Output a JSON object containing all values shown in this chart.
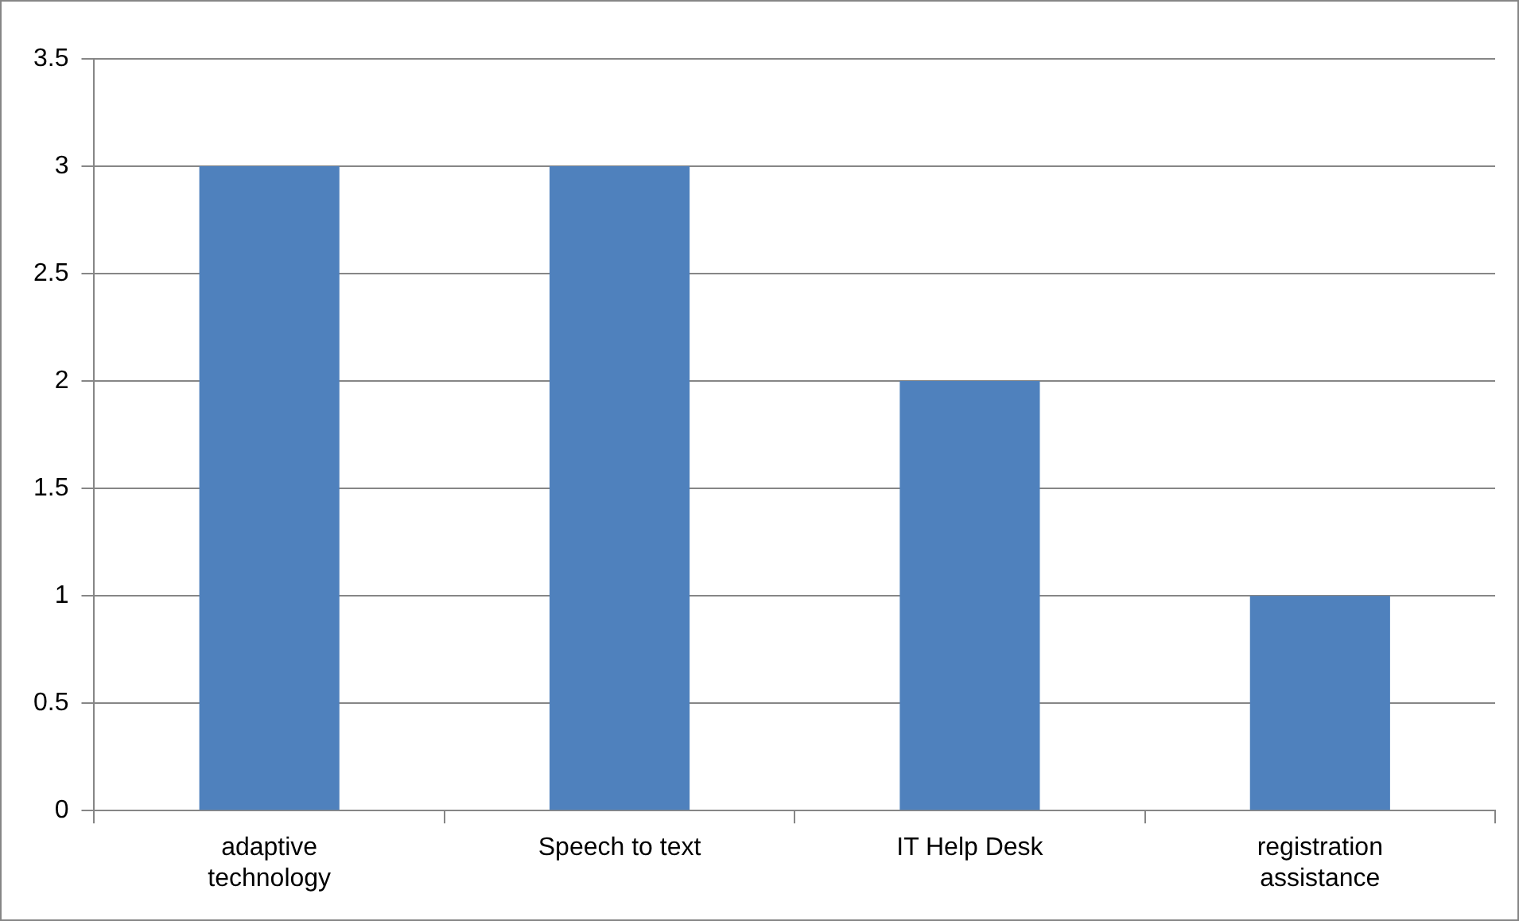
{
  "chart_data": {
    "type": "bar",
    "categories": [
      "adaptive technology",
      "Speech to text",
      "IT Help Desk",
      "registration assistance"
    ],
    "values": [
      3,
      3,
      2,
      1
    ],
    "color": "#4f81bd",
    "ylim": [
      0,
      3.5
    ],
    "yticks": [
      0,
      0.5,
      1,
      1.5,
      2,
      2.5,
      3,
      3.5
    ],
    "grid": "y",
    "legend": false
  }
}
